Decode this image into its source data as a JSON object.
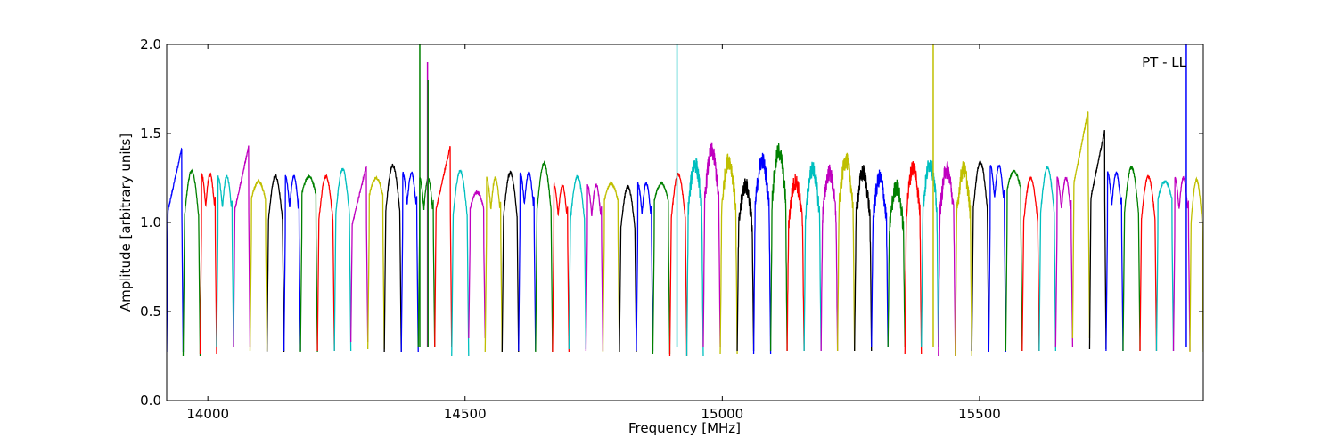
{
  "chart_data": {
    "type": "line",
    "annotation": "PT - LL",
    "xlabel": "Frequency [MHz]",
    "ylabel": "Amplitude [arbitrary units]",
    "xlim": [
      13920,
      15935
    ],
    "ylim": [
      0.0,
      2.0
    ],
    "xticks": [
      14000,
      14500,
      15000,
      15500
    ],
    "yticks": [
      0.0,
      0.5,
      1.0,
      1.5,
      2.0
    ],
    "ytick_labels": [
      "0.0",
      "0.5",
      "1.0",
      "1.5",
      "2.0"
    ],
    "grid": false,
    "legend": "none",
    "colors": [
      "#0000ff",
      "#008000",
      "#ff0000",
      "#00bfbf",
      "#bf00bf",
      "#bfbf00",
      "#000000"
    ],
    "band_width_mhz": 31.25,
    "first_band_start_mhz": 13920,
    "series": [
      {
        "color": "#0000ff",
        "start": 13920,
        "end": 13952,
        "peak": 1.42,
        "min": 0.27,
        "shape": "rise"
      },
      {
        "color": "#008000",
        "start": 13952,
        "end": 13985,
        "peak": 1.29,
        "min": 0.25,
        "shape": "hump"
      },
      {
        "color": "#ff0000",
        "start": 13985,
        "end": 14017,
        "peak": 1.27,
        "min": 0.26,
        "shape": "double"
      },
      {
        "color": "#00bfbf",
        "start": 14017,
        "end": 14050,
        "peak": 1.26,
        "min": 0.3,
        "shape": "double"
      },
      {
        "color": "#bf00bf",
        "start": 14050,
        "end": 14082,
        "peak": 1.43,
        "min": 0.3,
        "shape": "rise"
      },
      {
        "color": "#bfbf00",
        "start": 14082,
        "end": 14115,
        "peak": 1.23,
        "min": 0.28,
        "shape": "flat"
      },
      {
        "color": "#000000",
        "start": 14115,
        "end": 14148,
        "peak": 1.26,
        "min": 0.27,
        "shape": "hump"
      },
      {
        "color": "#0000ff",
        "start": 14148,
        "end": 14180,
        "peak": 1.26,
        "min": 0.28,
        "shape": "double"
      },
      {
        "color": "#008000",
        "start": 14180,
        "end": 14213,
        "peak": 1.26,
        "min": 0.27,
        "shape": "flat"
      },
      {
        "color": "#ff0000",
        "start": 14213,
        "end": 14246,
        "peak": 1.26,
        "min": 0.28,
        "shape": "hump"
      },
      {
        "color": "#00bfbf",
        "start": 14246,
        "end": 14278,
        "peak": 1.3,
        "min": 0.28,
        "shape": "hump"
      },
      {
        "color": "#bf00bf",
        "start": 14278,
        "end": 14311,
        "peak": 1.32,
        "min": 0.33,
        "shape": "rise"
      },
      {
        "color": "#bfbf00",
        "start": 14311,
        "end": 14343,
        "peak": 1.25,
        "min": 0.29,
        "shape": "flat"
      },
      {
        "color": "#000000",
        "start": 14343,
        "end": 14376,
        "peak": 1.32,
        "min": 0.27,
        "shape": "hump"
      },
      {
        "color": "#0000ff",
        "start": 14376,
        "end": 14409,
        "peak": 1.28,
        "min": 0.27,
        "shape": "double"
      },
      {
        "color": "#008000",
        "start": 14409,
        "end": 14441,
        "peak": 1.25,
        "min": 0.3,
        "shape": "double"
      },
      {
        "color": "#ff0000",
        "start": 14441,
        "end": 14474,
        "peak": 1.43,
        "min": 0.3,
        "shape": "rise"
      },
      {
        "color": "#00bfbf",
        "start": 14474,
        "end": 14507,
        "peak": 1.29,
        "min": 0.25,
        "shape": "hump"
      },
      {
        "color": "#bf00bf",
        "start": 14507,
        "end": 14539,
        "peak": 1.17,
        "min": 0.35,
        "shape": "flat"
      },
      {
        "color": "#bfbf00",
        "start": 14539,
        "end": 14572,
        "peak": 1.25,
        "min": 0.27,
        "shape": "double"
      },
      {
        "color": "#000000",
        "start": 14572,
        "end": 14604,
        "peak": 1.28,
        "min": 0.27,
        "shape": "hump"
      },
      {
        "color": "#0000ff",
        "start": 14604,
        "end": 14637,
        "peak": 1.28,
        "min": 0.28,
        "shape": "double"
      },
      {
        "color": "#008000",
        "start": 14637,
        "end": 14670,
        "peak": 1.33,
        "min": 0.27,
        "shape": "hump"
      },
      {
        "color": "#ff0000",
        "start": 14670,
        "end": 14702,
        "peak": 1.21,
        "min": 0.27,
        "shape": "double"
      },
      {
        "color": "#00bfbf",
        "start": 14702,
        "end": 14735,
        "peak": 1.26,
        "min": 0.29,
        "shape": "hump"
      },
      {
        "color": "#bf00bf",
        "start": 14735,
        "end": 14768,
        "peak": 1.21,
        "min": 0.28,
        "shape": "double"
      },
      {
        "color": "#bfbf00",
        "start": 14768,
        "end": 14800,
        "peak": 1.22,
        "min": 0.27,
        "shape": "flat"
      },
      {
        "color": "#000000",
        "start": 14800,
        "end": 14833,
        "peak": 1.2,
        "min": 0.27,
        "shape": "hump"
      },
      {
        "color": "#0000ff",
        "start": 14833,
        "end": 14865,
        "peak": 1.22,
        "min": 0.28,
        "shape": "double"
      },
      {
        "color": "#008000",
        "start": 14865,
        "end": 14898,
        "peak": 1.22,
        "min": 0.26,
        "shape": "flat"
      },
      {
        "color": "#ff0000",
        "start": 14898,
        "end": 14931,
        "peak": 1.27,
        "min": 0.25,
        "shape": "hump"
      },
      {
        "color": "#00bfbf",
        "start": 14931,
        "end": 14963,
        "peak": 1.33,
        "min": 0.25,
        "shape": "noisy"
      },
      {
        "color": "#bf00bf",
        "start": 14963,
        "end": 14996,
        "peak": 1.4,
        "min": 0.3,
        "shape": "noisy"
      },
      {
        "color": "#bfbf00",
        "start": 14996,
        "end": 15029,
        "peak": 1.35,
        "min": 0.26,
        "shape": "noisy"
      },
      {
        "color": "#000000",
        "start": 15029,
        "end": 15061,
        "peak": 1.21,
        "min": 0.28,
        "shape": "noisy"
      },
      {
        "color": "#0000ff",
        "start": 15061,
        "end": 15094,
        "peak": 1.35,
        "min": 0.26,
        "shape": "noisy"
      },
      {
        "color": "#008000",
        "start": 15094,
        "end": 15126,
        "peak": 1.4,
        "min": 0.28,
        "shape": "noisy"
      },
      {
        "color": "#ff0000",
        "start": 15126,
        "end": 15159,
        "peak": 1.23,
        "min": 0.28,
        "shape": "noisy"
      },
      {
        "color": "#00bfbf",
        "start": 15159,
        "end": 15192,
        "peak": 1.3,
        "min": 0.28,
        "shape": "noisy"
      },
      {
        "color": "#bf00bf",
        "start": 15192,
        "end": 15224,
        "peak": 1.28,
        "min": 0.28,
        "shape": "noisy"
      },
      {
        "color": "#bfbf00",
        "start": 15224,
        "end": 15257,
        "peak": 1.35,
        "min": 0.28,
        "shape": "noisy"
      },
      {
        "color": "#000000",
        "start": 15257,
        "end": 15290,
        "peak": 1.28,
        "min": 0.28,
        "shape": "noisy"
      },
      {
        "color": "#0000ff",
        "start": 15290,
        "end": 15322,
        "peak": 1.25,
        "min": 0.3,
        "shape": "noisy"
      },
      {
        "color": "#008000",
        "start": 15322,
        "end": 15355,
        "peak": 1.2,
        "min": 0.3,
        "shape": "noisy"
      },
      {
        "color": "#ff0000",
        "start": 15355,
        "end": 15387,
        "peak": 1.31,
        "min": 0.26,
        "shape": "noisy"
      },
      {
        "color": "#00bfbf",
        "start": 15387,
        "end": 15420,
        "peak": 1.33,
        "min": 0.3,
        "shape": "noisy"
      },
      {
        "color": "#bf00bf",
        "start": 15420,
        "end": 15453,
        "peak": 1.3,
        "min": 0.25,
        "shape": "noisy"
      },
      {
        "color": "#bfbf00",
        "start": 15453,
        "end": 15485,
        "peak": 1.3,
        "min": 0.25,
        "shape": "noisy"
      },
      {
        "color": "#000000",
        "start": 15485,
        "end": 15518,
        "peak": 1.34,
        "min": 0.28,
        "shape": "hump"
      },
      {
        "color": "#0000ff",
        "start": 15518,
        "end": 15551,
        "peak": 1.32,
        "min": 0.27,
        "shape": "double"
      },
      {
        "color": "#008000",
        "start": 15551,
        "end": 15583,
        "peak": 1.29,
        "min": 0.28,
        "shape": "flat"
      },
      {
        "color": "#ff0000",
        "start": 15583,
        "end": 15616,
        "peak": 1.25,
        "min": 0.28,
        "shape": "hump"
      },
      {
        "color": "#00bfbf",
        "start": 15616,
        "end": 15648,
        "peak": 1.31,
        "min": 0.28,
        "shape": "hump"
      },
      {
        "color": "#bf00bf",
        "start": 15648,
        "end": 15681,
        "peak": 1.25,
        "min": 0.3,
        "shape": "double"
      },
      {
        "color": "#bfbf00",
        "start": 15681,
        "end": 15714,
        "peak": 1.63,
        "min": 0.35,
        "shape": "rise"
      },
      {
        "color": "#000000",
        "start": 15714,
        "end": 15746,
        "peak": 1.52,
        "min": 0.29,
        "shape": "rise"
      },
      {
        "color": "#0000ff",
        "start": 15746,
        "end": 15779,
        "peak": 1.28,
        "min": 0.28,
        "shape": "double"
      },
      {
        "color": "#008000",
        "start": 15779,
        "end": 15812,
        "peak": 1.31,
        "min": 0.28,
        "shape": "hump"
      },
      {
        "color": "#ff0000",
        "start": 15812,
        "end": 15844,
        "peak": 1.26,
        "min": 0.28,
        "shape": "hump"
      },
      {
        "color": "#00bfbf",
        "start": 15844,
        "end": 15877,
        "peak": 1.23,
        "min": 0.28,
        "shape": "flat"
      },
      {
        "color": "#bf00bf",
        "start": 15877,
        "end": 15909,
        "peak": 1.25,
        "min": 0.28,
        "shape": "double"
      },
      {
        "color": "#bfbf00",
        "start": 15909,
        "end": 15935,
        "peak": 1.24,
        "min": 0.27,
        "shape": "hump"
      }
    ],
    "spikes": [
      {
        "x": 14412,
        "y": 2.0,
        "color": "#008000"
      },
      {
        "x": 14427,
        "y": 1.9,
        "color": "#bf00bf"
      },
      {
        "x": 14428,
        "y": 1.8,
        "color": "#008000"
      },
      {
        "x": 14912,
        "y": 2.0,
        "color": "#00bfbf"
      },
      {
        "x": 15410,
        "y": 2.0,
        "color": "#bfbf00"
      },
      {
        "x": 15902,
        "y": 2.0,
        "color": "#0000ff"
      }
    ]
  }
}
